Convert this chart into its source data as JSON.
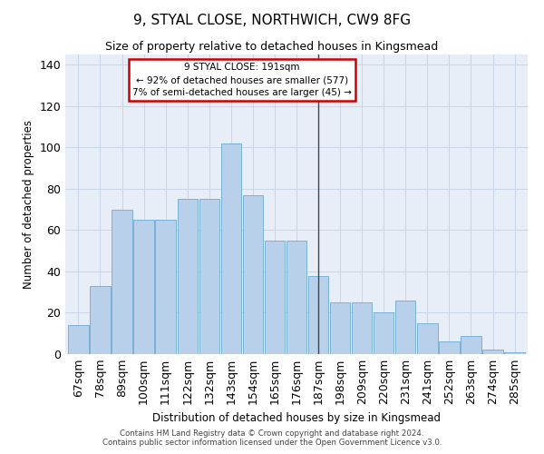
{
  "title": "9, STYAL CLOSE, NORTHWICH, CW9 8FG",
  "subtitle": "Size of property relative to detached houses in Kingsmead",
  "xlabel": "Distribution of detached houses by size in Kingsmead",
  "ylabel": "Number of detached properties",
  "categories": [
    "67sqm",
    "78sqm",
    "89sqm",
    "100sqm",
    "111sqm",
    "122sqm",
    "132sqm",
    "143sqm",
    "154sqm",
    "165sqm",
    "176sqm",
    "187sqm",
    "198sqm",
    "209sqm",
    "220sqm",
    "231sqm",
    "241sqm",
    "252sqm",
    "263sqm",
    "274sqm",
    "285sqm"
  ],
  "heights": [
    14,
    33,
    70,
    65,
    65,
    75,
    75,
    102,
    77,
    55,
    55,
    38,
    25,
    25,
    20,
    26,
    15,
    6,
    9,
    2,
    1
  ],
  "bar_color": "#b8d0ea",
  "bar_edge_color": "#6aaad4",
  "grid_color": "#c8d4e8",
  "bg_color": "#e8eef8",
  "annotation_line1": "9 STYAL CLOSE: 191sqm",
  "annotation_line2": "← 92% of detached houses are smaller (577)",
  "annotation_line3": "7% of semi-detached houses are larger (45) →",
  "annotation_box_facecolor": "#ffffff",
  "annotation_border_color": "#cc0000",
  "vline_color": "#444444",
  "ylim_max": 145,
  "marker_category": "187sqm",
  "footer_line1": "Contains HM Land Registry data © Crown copyright and database right 2024.",
  "footer_line2": "Contains public sector information licensed under the Open Government Licence v3.0."
}
